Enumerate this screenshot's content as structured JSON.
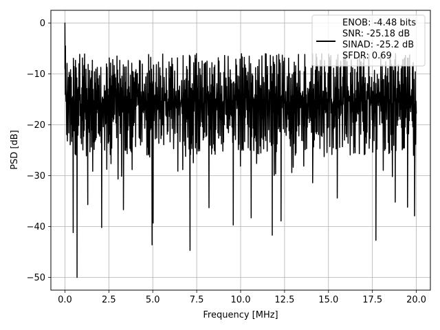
{
  "chart_data": {
    "type": "line",
    "title": "",
    "xlabel": "Frequency [MHz]",
    "ylabel": "PSD [dB]",
    "xlim": [
      -0.8,
      20.8
    ],
    "ylim": [
      -52.5,
      2.5
    ],
    "xticks": [
      0.0,
      2.5,
      5.0,
      7.5,
      10.0,
      12.5,
      15.0,
      17.5,
      20.0
    ],
    "xtick_labels": [
      "0.0",
      "2.5",
      "5.0",
      "7.5",
      "10.0",
      "12.5",
      "15.0",
      "17.5",
      "20.0"
    ],
    "yticks": [
      0,
      -10,
      -20,
      -30,
      -40,
      -50
    ],
    "ytick_labels": [
      "0",
      "−10",
      "−20",
      "−30",
      "−40",
      "−50"
    ],
    "grid": true,
    "legend_placement": "top-right",
    "series": [
      {
        "name": "ENOB: -4.48 bits\nSNR: -25.18 dB\nSINAD: -25.2 dB\nSFDR: 0.69",
        "legend_lines": [
          "ENOB: -4.48 bits",
          "SNR: -25.18 dB",
          "SINAD: -25.2 dB",
          "SFDR: 0.69"
        ],
        "color": "#000000",
        "x_range": [
          0.0,
          20.0
        ],
        "points": 1000,
        "envelope_upper_db": -6,
        "envelope_lower_db": -32,
        "peaks": [
          [
            0.0,
            0.0
          ],
          [
            0.03,
            -4.5
          ],
          [
            0.12,
            -8
          ],
          [
            0.5,
            -12
          ]
        ],
        "dips": [
          [
            0.47,
            -41.2
          ],
          [
            0.69,
            -50.0
          ],
          [
            1.3,
            -35.7
          ],
          [
            2.09,
            -40.2
          ],
          [
            3.33,
            -36.7
          ],
          [
            4.96,
            -43.6
          ],
          [
            5.02,
            -39.3
          ],
          [
            7.12,
            -44.7
          ],
          [
            8.2,
            -36.3
          ],
          [
            9.58,
            -39.7
          ],
          [
            10.6,
            -38.3
          ],
          [
            11.8,
            -41.7
          ],
          [
            12.3,
            -38.9
          ],
          [
            14.1,
            -31.4
          ],
          [
            15.5,
            -34.4
          ],
          [
            17.7,
            -42.7
          ],
          [
            18.8,
            -35.2
          ],
          [
            19.5,
            -36.2
          ],
          [
            19.9,
            -37.9
          ]
        ]
      }
    ]
  }
}
